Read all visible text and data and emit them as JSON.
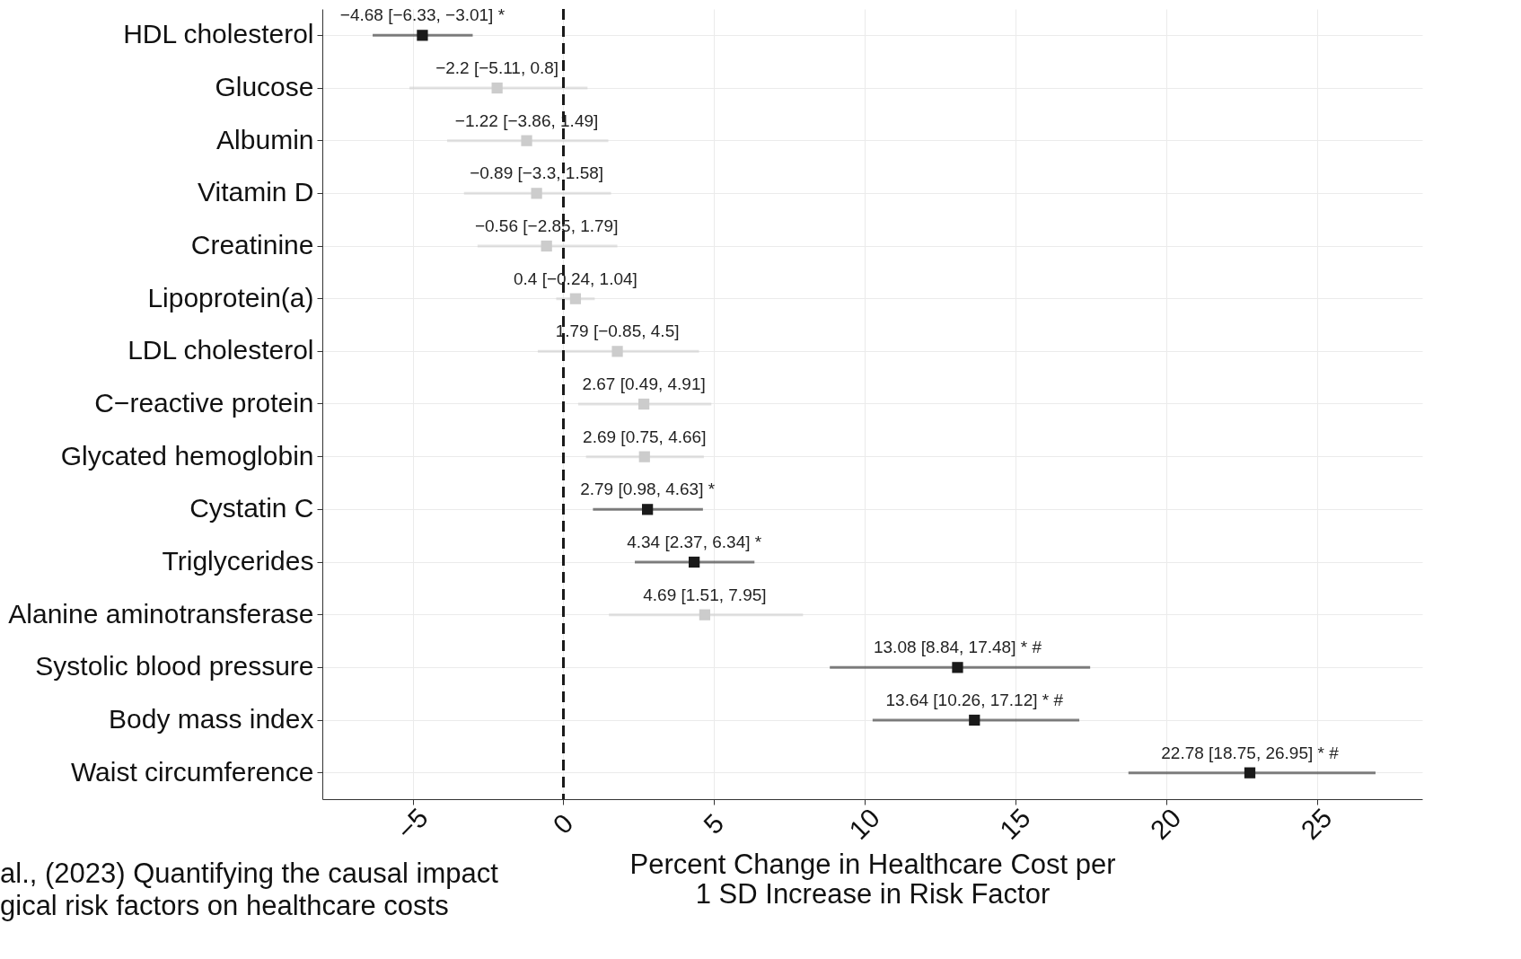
{
  "chart_data": {
    "type": "scatter",
    "orientation": "horizontal",
    "marker": "square",
    "grid": true,
    "legend": false,
    "xlabel": "Percent Change in Healthcare Cost per\n1 SD Increase in Risk Factor",
    "categories": [
      "HDL cholesterol",
      "Glucose",
      "Albumin",
      "Vitamin D",
      "Creatinine",
      "Lipoprotein(a)",
      "LDL cholesterol",
      "C−reactive protein",
      "Glycated hemoglobin",
      "Cystatin C",
      "Triglycerides",
      "Alanine aminotransferase",
      "Systolic blood pressure",
      "Body mass index",
      "Waist circumference"
    ],
    "xlim": [
      -8,
      28.5
    ],
    "xticks": [
      {
        "value": -5,
        "label": "−5"
      },
      0,
      5,
      10,
      15,
      20,
      25
    ],
    "series": [
      {
        "color": "#1a1a1a",
        "values": [
          -4.68,
          null,
          null,
          null,
          null,
          null,
          null,
          null,
          null,
          2.79,
          4.34,
          null,
          13.08,
          13.64,
          22.78
        ],
        "errors": [
          [
            -6.33,
            -3.01
          ],
          null,
          null,
          null,
          null,
          null,
          null,
          null,
          null,
          [
            0.98,
            4.63
          ],
          [
            2.37,
            6.34
          ],
          null,
          [
            8.84,
            17.48
          ],
          [
            10.26,
            17.12
          ],
          [
            18.75,
            26.95
          ]
        ],
        "value_labels": [
          "−4.68 [−6.33, −3.01] *",
          null,
          null,
          null,
          null,
          null,
          null,
          null,
          null,
          "2.79 [0.98, 4.63] *",
          "4.34 [2.37, 6.34] *",
          null,
          "13.08 [8.84, 17.48] * #",
          "13.64 [10.26, 17.12] * #",
          "22.78 [18.75, 26.95] * #"
        ]
      },
      {
        "color": "#cccccc",
        "values": [
          null,
          -2.2,
          -1.22,
          -0.89,
          -0.56,
          0.4,
          1.79,
          2.67,
          2.69,
          null,
          null,
          4.69,
          null,
          null,
          null
        ],
        "errors": [
          null,
          [
            -5.11,
            0.8
          ],
          [
            -3.86,
            1.49
          ],
          [
            -3.3,
            1.58
          ],
          [
            -2.85,
            1.79
          ],
          [
            -0.24,
            1.04
          ],
          [
            -0.85,
            4.5
          ],
          [
            0.49,
            4.91
          ],
          [
            0.75,
            4.66
          ],
          null,
          null,
          [
            1.51,
            7.95
          ],
          null,
          null,
          null
        ],
        "value_labels": [
          null,
          "−2.2 [−5.11, 0.8]",
          "−1.22 [−3.86, 1.49]",
          "−0.89 [−3.3, 1.58]",
          "−0.56 [−2.85, 1.79]",
          "0.4 [−0.24, 1.04]",
          "1.79 [−0.85, 4.5]",
          "2.67 [0.49, 4.91]",
          "2.69 [0.75, 4.66]",
          null,
          null,
          "4.69 [1.51, 7.95]",
          null,
          null,
          null
        ]
      }
    ],
    "ref_lines": [
      {
        "axis": "x",
        "value": 0,
        "line_style": "dashed",
        "color": "#1a1a1a"
      }
    ],
    "annotations": [
      "al., (2023) Quantifying the causal impact",
      "gical risk factors on healthcare costs"
    ]
  }
}
